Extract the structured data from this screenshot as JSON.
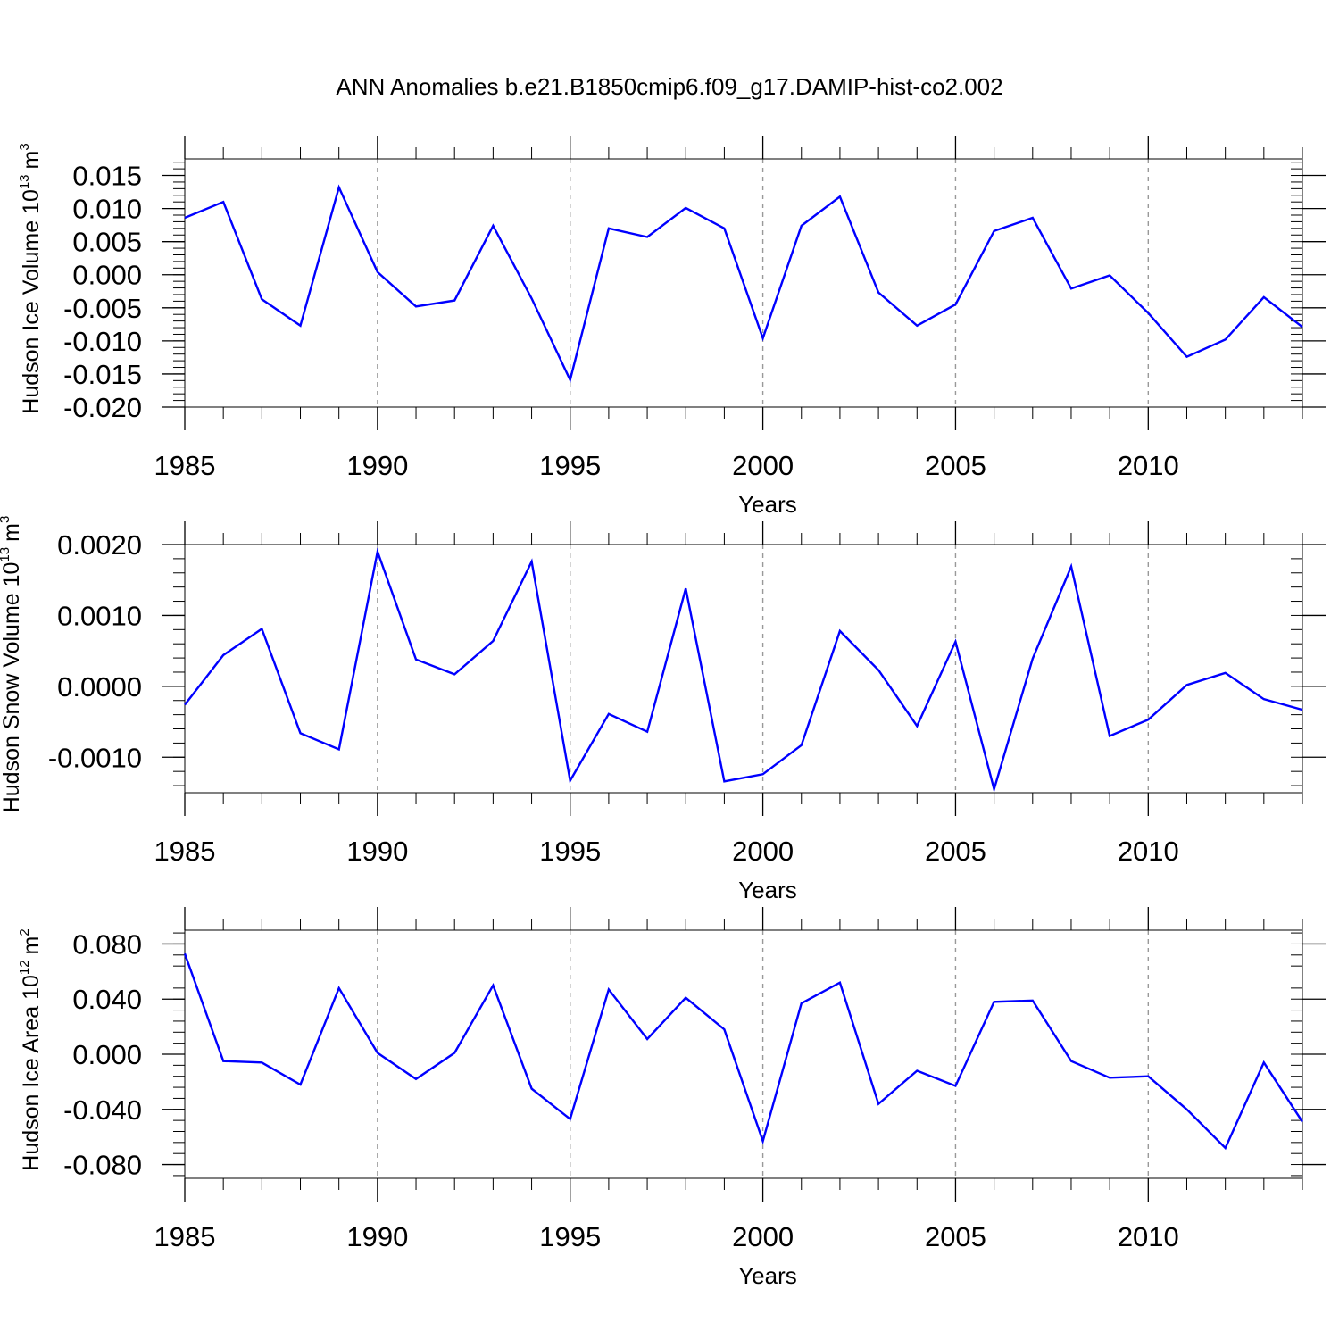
{
  "title": "ANN Anomalies b.e21.B1850cmip6.f09_g17.DAMIP-hist-co2.002",
  "colors": {
    "line": "#0000ff",
    "axis": "#000000",
    "grid": "#999999"
  },
  "chart_data": [
    {
      "type": "line",
      "ylabel_main": "Hudson Ice Volume 10",
      "ylabel_exp": "13",
      "ylabel_unit": "m",
      "ylabel_unit_exp": "3",
      "xlabel": "Years",
      "xlim": [
        1985,
        2014
      ],
      "ylim": [
        -0.02,
        0.0175
      ],
      "x_ticks": [
        "1985",
        "1990",
        "1995",
        "2000",
        "2005",
        "2010"
      ],
      "y_ticks": [
        {
          "value": 0.015,
          "label": "0.015"
        },
        {
          "value": 0.01,
          "label": "0.010"
        },
        {
          "value": 0.005,
          "label": "0.005"
        },
        {
          "value": 0.0,
          "label": "0.000"
        },
        {
          "value": -0.005,
          "label": "-0.005"
        },
        {
          "value": -0.01,
          "label": "-0.010"
        },
        {
          "value": -0.015,
          "label": "-0.015"
        },
        {
          "value": -0.02,
          "label": "-0.020"
        }
      ],
      "y_minor_step": 0.001,
      "series": [
        {
          "name": "Hudson Ice Volume",
          "x": [
            1985,
            1986,
            1987,
            1988,
            1989,
            1990,
            1991,
            1992,
            1993,
            1994,
            1995,
            1996,
            1997,
            1998,
            1999,
            2000,
            2001,
            2002,
            2003,
            2004,
            2005,
            2006,
            2007,
            2008,
            2009,
            2010,
            2011,
            2012,
            2013,
            2014
          ],
          "values": [
            0.0086,
            0.011,
            -0.0037,
            -0.0077,
            0.0132,
            0.0004,
            -0.0048,
            -0.0039,
            0.0074,
            -0.0036,
            -0.0159,
            0.007,
            0.0057,
            0.0101,
            0.007,
            -0.0096,
            0.0074,
            0.0118,
            -0.0027,
            -0.0077,
            -0.0045,
            0.0066,
            0.0086,
            -0.0021,
            -0.0001,
            -0.0058,
            -0.0124,
            -0.0098,
            -0.0034,
            -0.0079
          ]
        }
      ]
    },
    {
      "type": "line",
      "ylabel_main": "Hudson Snow Volume 10",
      "ylabel_exp": "13",
      "ylabel_unit": "m",
      "ylabel_unit_exp": "3",
      "xlabel": "Years",
      "xlim": [
        1985,
        2014
      ],
      "ylim": [
        -0.0015,
        0.002
      ],
      "x_ticks": [
        "1985",
        "1990",
        "1995",
        "2000",
        "2005",
        "2010"
      ],
      "y_ticks": [
        {
          "value": 0.002,
          "label": "0.0020"
        },
        {
          "value": 0.001,
          "label": "0.0010"
        },
        {
          "value": 0.0,
          "label": "0.0000"
        },
        {
          "value": -0.001,
          "label": "-0.0010"
        }
      ],
      "y_minor_step": 0.0002,
      "series": [
        {
          "name": "Hudson Snow Volume",
          "x": [
            1985,
            1986,
            1987,
            1988,
            1989,
            1990,
            1991,
            1992,
            1993,
            1994,
            1995,
            1996,
            1997,
            1998,
            1999,
            2000,
            2001,
            2002,
            2003,
            2004,
            2005,
            2006,
            2007,
            2008,
            2009,
            2010,
            2011,
            2012,
            2013,
            2014
          ],
          "values": [
            -0.00026,
            0.00044,
            0.00081,
            -0.00066,
            -0.00089,
            0.0019,
            0.00038,
            0.00017,
            0.00064,
            0.00176,
            -0.00133,
            -0.00039,
            -0.00064,
            0.00138,
            -0.00134,
            -0.00124,
            -0.00083,
            0.00078,
            0.00023,
            -0.00056,
            0.00063,
            -0.00145,
            0.00039,
            0.00169,
            -0.0007,
            -0.00047,
            2e-05,
            0.00019,
            -0.00018,
            -0.00033
          ]
        }
      ]
    },
    {
      "type": "line",
      "ylabel_main": "Hudson Ice Area 10",
      "ylabel_exp": "12",
      "ylabel_unit": "m",
      "ylabel_unit_exp": "2",
      "xlabel": "Years",
      "xlim": [
        1985,
        2014
      ],
      "ylim": [
        -0.09,
        0.09
      ],
      "x_ticks": [
        "1985",
        "1990",
        "1995",
        "2000",
        "2005",
        "2010"
      ],
      "y_ticks": [
        {
          "value": 0.08,
          "label": "0.080"
        },
        {
          "value": 0.04,
          "label": "0.040"
        },
        {
          "value": 0.0,
          "label": "0.000"
        },
        {
          "value": -0.04,
          "label": "-0.040"
        },
        {
          "value": -0.08,
          "label": "-0.080"
        }
      ],
      "y_minor_step": 0.008,
      "series": [
        {
          "name": "Hudson Ice Area",
          "x": [
            1985,
            1986,
            1987,
            1988,
            1989,
            1990,
            1991,
            1992,
            1993,
            1994,
            1995,
            1996,
            1997,
            1998,
            1999,
            2000,
            2001,
            2002,
            2003,
            2004,
            2005,
            2006,
            2007,
            2008,
            2009,
            2010,
            2011,
            2012,
            2013,
            2014
          ],
          "values": [
            0.073,
            -0.005,
            -0.006,
            -0.022,
            0.048,
            0.001,
            -0.018,
            0.001,
            0.05,
            -0.025,
            -0.047,
            0.047,
            0.011,
            0.041,
            0.018,
            -0.063,
            0.037,
            0.052,
            -0.036,
            -0.012,
            -0.023,
            0.038,
            0.039,
            -0.005,
            -0.017,
            -0.016,
            -0.04,
            -0.068,
            -0.006,
            -0.049
          ]
        }
      ]
    }
  ]
}
